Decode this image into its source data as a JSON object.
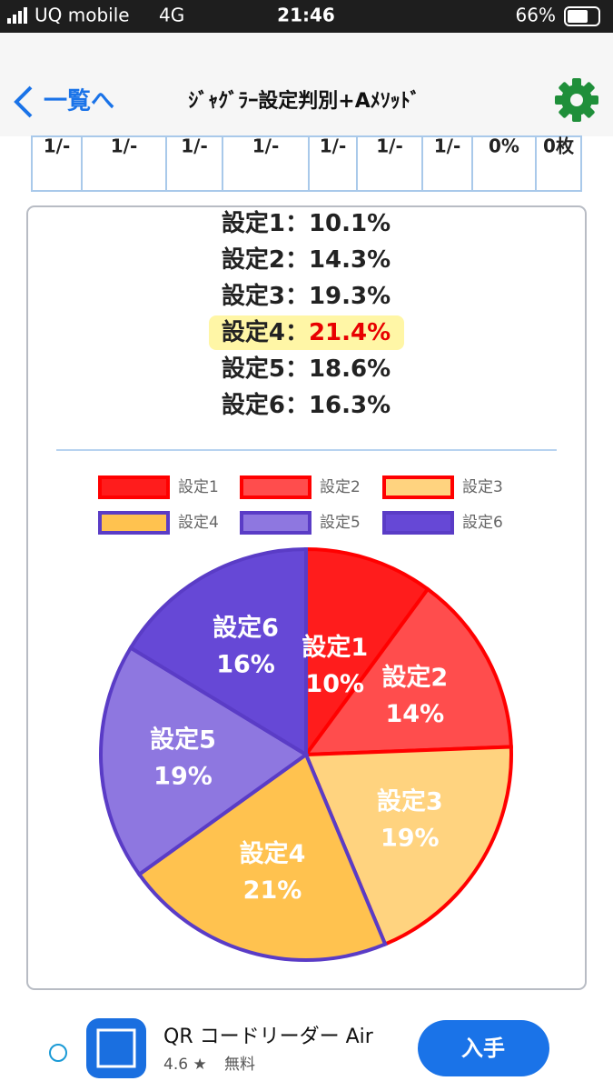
{
  "status_bar": {
    "carrier": "UQ mobile",
    "network": "4G",
    "time": "21:46",
    "battery": "66%"
  },
  "nav": {
    "back": "一覧へ",
    "title": "ｼﾞｬｸﾞﾗｰ設定判別+Aﾒｿｯﾄﾞ"
  },
  "table": {
    "rows": [
      [
        "1/-",
        "1/-",
        "1/-",
        "1/-",
        "1/-",
        "1/-",
        "1/-",
        "0%",
        "0枚"
      ]
    ]
  },
  "results": {
    "separator": "：",
    "highlight": 3,
    "rows": [
      {
        "name": "設定1",
        "value": 10.1,
        "value_label": "10.1%"
      },
      {
        "name": "設定2",
        "value": 14.3,
        "value_label": "14.3%"
      },
      {
        "name": "設定3",
        "value": 19.3,
        "value_label": "19.3%"
      },
      {
        "name": "設定4",
        "value": 21.4,
        "value_label": "21.4%"
      },
      {
        "name": "設定5",
        "value": 18.6,
        "value_label": "18.6%"
      },
      {
        "name": "設定6",
        "value": 16.3,
        "value_label": "16.3%"
      }
    ]
  },
  "chart_data": {
    "type": "pie",
    "categories": [
      "設定1",
      "設定2",
      "設定3",
      "設定4",
      "設定5",
      "設定6"
    ],
    "values": [
      10.1,
      14.3,
      19.3,
      21.4,
      18.6,
      16.3
    ],
    "value_labels": [
      "10%",
      "14%",
      "19%",
      "21%",
      "19%",
      "16%"
    ],
    "colors": [
      "#ff1c1c",
      "#ff4d4d",
      "#ffd37f",
      "#ffc24f",
      "#8e77e0",
      "#6648d6"
    ],
    "border_colors": [
      "#ff0000",
      "#ff0000",
      "#ff0000",
      "#5a3cc6",
      "#5a3cc6",
      "#5a3cc6"
    ],
    "legend": "top"
  },
  "ad": {
    "app": "QR コードリーダー Air",
    "rating": "4.6 ★",
    "price": "無料",
    "button": "入手"
  }
}
